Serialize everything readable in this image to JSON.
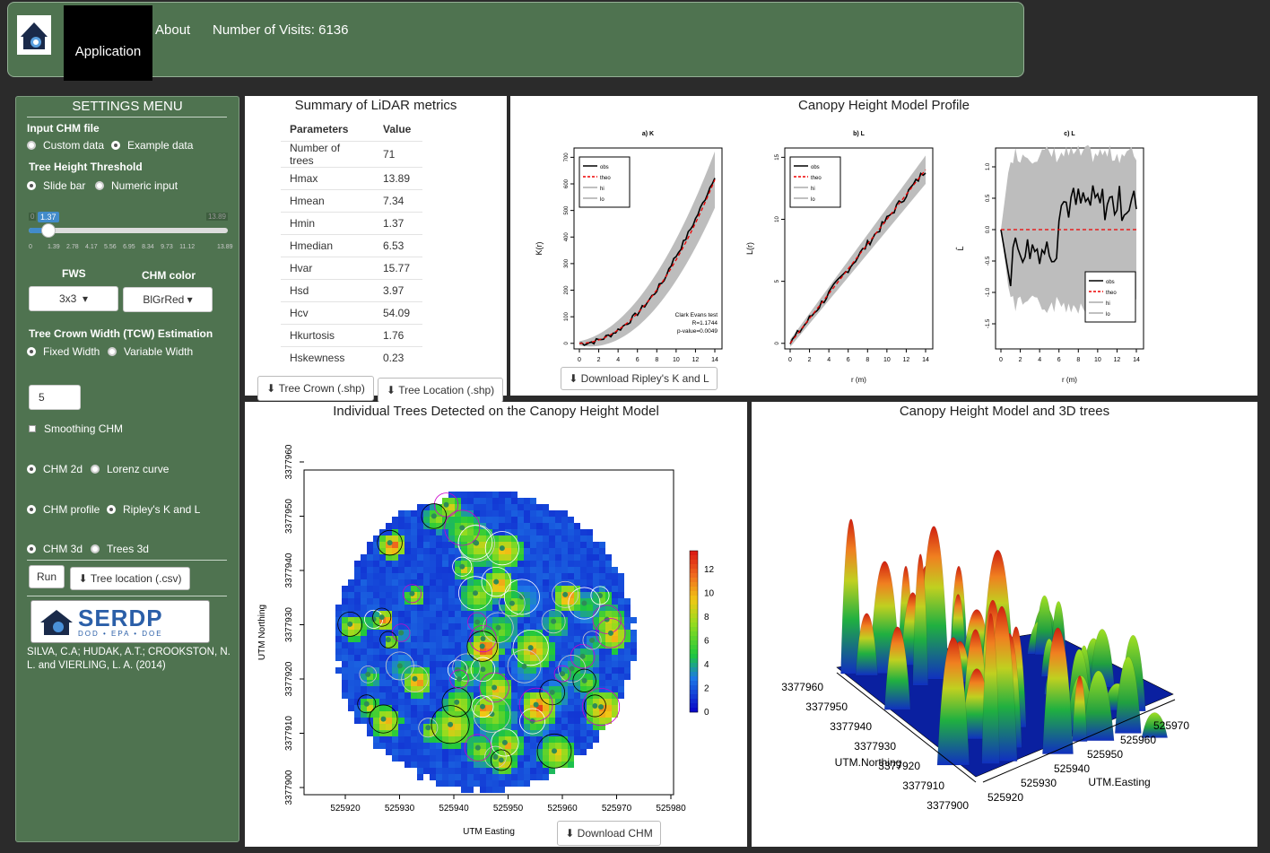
{
  "nav": {
    "app_label": "Application",
    "about_label": "About",
    "visits_label": "Number of Visits: 6136"
  },
  "settings": {
    "title": "SETTINGS MENU",
    "input_chm": "Input CHM file",
    "custom": "Custom data",
    "example": "Example data",
    "threshold": "Tree Height Threshold",
    "slide": "Slide bar",
    "numeric": "Numeric input",
    "slider": {
      "min": "0",
      "max": "13.89",
      "value": "1.37",
      "ticks": [
        "0",
        "1.39",
        "2.78",
        "4.17",
        "5.56",
        "6.95",
        "8.34",
        "9.73",
        "11.12",
        "13.89"
      ],
      "fraction": 0.099
    },
    "fws_label": "FWS",
    "fws_value": "3x3",
    "chm_color_label": "CHM color",
    "chm_color_value": "BlGrRed",
    "tcw": "Tree Crown Width (TCW) Estimation",
    "fixed": "Fixed Width",
    "variable": "Variable Width",
    "tcw_value": "5",
    "smoothing": "Smoothing CHM",
    "chm2d": "CHM 2d",
    "lorenz": "Lorenz curve",
    "chmprofile": "CHM profile",
    "ripley": "Ripley's K and L",
    "chm3d": "CHM 3d",
    "trees3d": "Trees 3d",
    "run": "Run",
    "tree_csv": "Tree location (.csv)",
    "logo_text": "SERDP",
    "logo_sub": "DOD • EPA • DOE",
    "credit": "SILVA, C.A; HUDAK, A.T.; CROOKSTON, N. L. and VIERLING, L. A. (2014)"
  },
  "summary": {
    "title": "Summary of LiDAR metrics",
    "headers": [
      "Parameters",
      "Value"
    ],
    "rows": [
      [
        "Number of trees",
        "71"
      ],
      [
        "Hmax",
        "13.89"
      ],
      [
        "Hmean",
        "7.34"
      ],
      [
        "Hmin",
        "1.37"
      ],
      [
        "Hmedian",
        "6.53"
      ],
      [
        "Hvar",
        "15.77"
      ],
      [
        "Hsd",
        "3.97"
      ],
      [
        "Hcv",
        "54.09"
      ],
      [
        "Hkurtosis",
        "1.76"
      ],
      [
        "Hskewness",
        "0.23"
      ]
    ],
    "crown_btn": "Tree Crown (.shp)",
    "loc_btn": "Tree Location (.shp)"
  },
  "profile": {
    "title": "Canopy Height Model Profile",
    "download": "Download Ripley's K and L",
    "plots": [
      {
        "label": "a) K",
        "ylabel": "K(r)",
        "yticks": [
          "0",
          "100",
          "200",
          "300",
          "400",
          "500",
          "600",
          "700"
        ],
        "note": [
          "Clark Evans test",
          "R=1.1744",
          "p-value=0.0049"
        ]
      },
      {
        "label": "b) L",
        "ylabel": "L(r)",
        "yticks": [
          "0",
          "5",
          "10",
          "15"
        ]
      },
      {
        "label": "c) L",
        "ylabel": "L̂",
        "yticks": [
          "-1.5",
          "-1.0",
          "-0.5",
          "0.0",
          "0.5",
          "1.0"
        ]
      }
    ],
    "xticks": [
      "0",
      "2",
      "4",
      "6",
      "8",
      "10",
      "12",
      "14"
    ],
    "xlabel": "r (m)"
  },
  "chm2d": {
    "title": "Individual Trees Detected on the Canopy Height Model",
    "xlabel": "UTM Easting",
    "ylabel": "UTM Northing",
    "xticks": [
      "525920",
      "525930",
      "525940",
      "525950",
      "525960",
      "525970",
      "525980"
    ],
    "yticks": [
      "3377900",
      "3377910",
      "3377920",
      "3377930",
      "3377940",
      "3377950",
      "3377960"
    ],
    "legend": [
      "0",
      "2",
      "4",
      "6",
      "8",
      "10",
      "12"
    ],
    "download": "Download CHM"
  },
  "chm3d": {
    "title": "Canopy Height Model and 3D trees",
    "north_label": "UTM.Northing",
    "east_label": "UTM.Easting",
    "north_ticks": [
      "3377960",
      "3377950",
      "3377940",
      "3377930",
      "3377920",
      "3377910",
      "3377900"
    ],
    "east_ticks": [
      "525970",
      "525960",
      "525950",
      "525940",
      "525930",
      "525920"
    ]
  },
  "chart_data": {
    "type": "line",
    "title": "a) K",
    "xlabel": "r (m)",
    "ylabel": "K(r)",
    "x": [
      0,
      2,
      4,
      6,
      8,
      10,
      12,
      14
    ],
    "series": [
      {
        "name": "K obs",
        "values": [
          0,
          15,
          60,
          140,
          250,
          380,
          500,
          620
        ]
      },
      {
        "name": "K theo",
        "values": [
          0,
          12,
          50,
          113,
          201,
          314,
          452,
          615
        ]
      }
    ],
    "ylim": [
      0,
      700
    ]
  }
}
